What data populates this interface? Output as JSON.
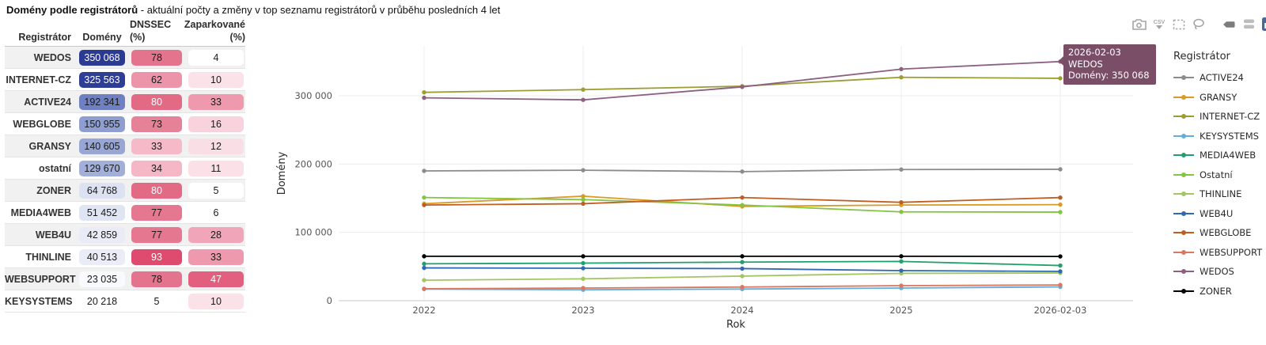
{
  "title": {
    "bold": "Domény podle registrátorů",
    "rest": " - aktuální počty a změny v top seznamu registrátorů v průběhu posledních 4 let"
  },
  "table": {
    "headers": {
      "registrar": "Registrátor",
      "domains": "Domény",
      "dnssec": "DNSSEC (%)",
      "parked_line1": "Zaparkované",
      "parked_line2": "(%)"
    },
    "rows": [
      {
        "name": "WEDOS",
        "domains": "350 068",
        "domains_bg": "#2b3a93",
        "domains_fg": "#ffffff",
        "dnssec": "78",
        "dnssec_bg": "#e4748d",
        "dnssec_fg": "#1a1a1a",
        "parked": "4",
        "parked_bg": "#ffffff",
        "parked_fg": "#1a1a1a"
      },
      {
        "name": "INTERNET-CZ",
        "domains": "325 563",
        "domains_bg": "#2e3d96",
        "domains_fg": "#ffffff",
        "dnssec": "62",
        "dnssec_bg": "#ec95aa",
        "dnssec_fg": "#1a1a1a",
        "parked": "10",
        "parked_bg": "#fbe2e9",
        "parked_fg": "#1a1a1a"
      },
      {
        "name": "ACTIVE24",
        "domains": "192 341",
        "domains_bg": "#6e80c2",
        "domains_fg": "#1a1a1a",
        "dnssec": "80",
        "dnssec_bg": "#e26a85",
        "dnssec_fg": "#ffffff",
        "parked": "33",
        "parked_bg": "#ee99ae",
        "parked_fg": "#1a1a1a"
      },
      {
        "name": "WEBGLOBE",
        "domains": "150 955",
        "domains_bg": "#8e9ed0",
        "domains_fg": "#1a1a1a",
        "dnssec": "73",
        "dnssec_bg": "#e68298",
        "dnssec_fg": "#1a1a1a",
        "parked": "16",
        "parked_bg": "#f8d2dd",
        "parked_fg": "#1a1a1a"
      },
      {
        "name": "GRANSY",
        "domains": "140 605",
        "domains_bg": "#97a6d4",
        "domains_fg": "#1a1a1a",
        "dnssec": "33",
        "dnssec_bg": "#f5b9c7",
        "dnssec_fg": "#1a1a1a",
        "parked": "12",
        "parked_bg": "#fadee6",
        "parked_fg": "#1a1a1a"
      },
      {
        "name": "ostatní",
        "domains": "129 670",
        "domains_bg": "#a2afd8",
        "domains_fg": "#1a1a1a",
        "dnssec": "34",
        "dnssec_bg": "#f5b7c5",
        "dnssec_fg": "#1a1a1a",
        "parked": "11",
        "parked_bg": "#fbe0e8",
        "parked_fg": "#1a1a1a"
      },
      {
        "name": "ZONER",
        "domains": "64 768",
        "domains_bg": "#dce2f2",
        "domains_fg": "#1a1a1a",
        "dnssec": "80",
        "dnssec_bg": "#e26a85",
        "dnssec_fg": "#ffffff",
        "parked": "5",
        "parked_bg": "#ffffff",
        "parked_fg": "#1a1a1a"
      },
      {
        "name": "MEDIA4WEB",
        "domains": "51 452",
        "domains_bg": "#e0e5f4",
        "domains_fg": "#1a1a1a",
        "dnssec": "77",
        "dnssec_bg": "#e57890",
        "dnssec_fg": "#1a1a1a",
        "parked": "6",
        "parked_bg": "#ffffff",
        "parked_fg": "#1a1a1a"
      },
      {
        "name": "WEB4U",
        "domains": "42 859",
        "domains_bg": "#e9ecf7",
        "domains_fg": "#1a1a1a",
        "dnssec": "77",
        "dnssec_bg": "#e57890",
        "dnssec_fg": "#1a1a1a",
        "parked": "28",
        "parked_bg": "#f0a5b8",
        "parked_fg": "#1a1a1a"
      },
      {
        "name": "THINLINE",
        "domains": "40 513",
        "domains_bg": "#eaedf8",
        "domains_fg": "#1a1a1a",
        "dnssec": "93",
        "dnssec_bg": "#de4b6e",
        "dnssec_fg": "#ffffff",
        "parked": "33",
        "parked_bg": "#ee99ae",
        "parked_fg": "#1a1a1a"
      },
      {
        "name": "WEBSUPPORT",
        "domains": "23 035",
        "domains_bg": "#f9fafd",
        "domains_fg": "#1a1a1a",
        "dnssec": "78",
        "dnssec_bg": "#e4748d",
        "dnssec_fg": "#1a1a1a",
        "parked": "47",
        "parked_bg": "#e25f7f",
        "parked_fg": "#ffffff"
      },
      {
        "name": "KEYSYSTEMS",
        "domains": "20 218",
        "domains_bg": "transparent",
        "domains_fg": "#1a1a1a",
        "dnssec": "5",
        "dnssec_bg": "transparent",
        "dnssec_fg": "#1a1a1a",
        "parked": "10",
        "parked_bg": "#fbe2e9",
        "parked_fg": "#1a1a1a"
      }
    ]
  },
  "toolbar": {
    "csv_label": "CSV",
    "icons": [
      "camera",
      "csv-download",
      "box-select",
      "lasso-select",
      "hover-closest",
      "hover-compare",
      "plotly-logo"
    ],
    "icon_color": "#a5a5a5",
    "active_icon_color": "#7c7c7c",
    "logo_color": "#4a6896"
  },
  "chart_data": {
    "type": "line",
    "xlabel": "Rok",
    "ylabel": "Domény",
    "x": [
      "2022",
      "2023",
      "2024",
      "2025",
      "2026-02-03"
    ],
    "y_ticks": [
      {
        "value": 0,
        "label": "0"
      },
      {
        "value": 100000,
        "label": "100 000"
      },
      {
        "value": 200000,
        "label": "200 000"
      },
      {
        "value": 300000,
        "label": "300 000"
      }
    ],
    "ylim": [
      0,
      373000
    ],
    "grid": true,
    "legend_title": "Registrátor",
    "legend_position": "right",
    "series": [
      {
        "name": "ACTIVE24",
        "color": "#8c8c8c",
        "values": [
          190000,
          191000,
          189000,
          192000,
          192341
        ]
      },
      {
        "name": "GRANSY",
        "color": "#d89b27",
        "values": [
          142000,
          153000,
          138000,
          140000,
          140605
        ]
      },
      {
        "name": "INTERNET-CZ",
        "color": "#9c9d33",
        "values": [
          305000,
          309000,
          314000,
          327000,
          325563
        ]
      },
      {
        "name": "KEYSYSTEMS",
        "color": "#62aede",
        "values": [
          17000,
          16000,
          17000,
          18500,
          20218
        ]
      },
      {
        "name": "MEDIA4WEB",
        "color": "#21a06c",
        "values": [
          54000,
          55000,
          56500,
          57500,
          51452
        ]
      },
      {
        "name": "Ostatní",
        "color": "#83c440",
        "values": [
          151000,
          148000,
          140000,
          130000,
          129670
        ]
      },
      {
        "name": "THINLINE",
        "color": "#a3c662",
        "values": [
          30000,
          32000,
          36000,
          40000,
          40513
        ]
      },
      {
        "name": "WEB4U",
        "color": "#3069b0",
        "values": [
          48000,
          47500,
          47000,
          44000,
          42859
        ]
      },
      {
        "name": "WEBGLOBE",
        "color": "#bf5e23",
        "values": [
          140000,
          142000,
          151000,
          144000,
          150955
        ]
      },
      {
        "name": "WEBSUPPORT",
        "color": "#d97760",
        "values": [
          17500,
          18500,
          20000,
          22000,
          23035
        ]
      },
      {
        "name": "WEDOS",
        "color": "#8d5f82",
        "values": [
          297000,
          294000,
          313000,
          339000,
          350068
        ]
      },
      {
        "name": "ZONER",
        "color": "#000000",
        "values": [
          65000,
          65000,
          65000,
          65000,
          64768
        ]
      }
    ],
    "tooltip": {
      "date": "2026-02-03",
      "name": "WEDOS",
      "value_label": "Domény: 350 068",
      "bg": "#7b4e68"
    }
  }
}
